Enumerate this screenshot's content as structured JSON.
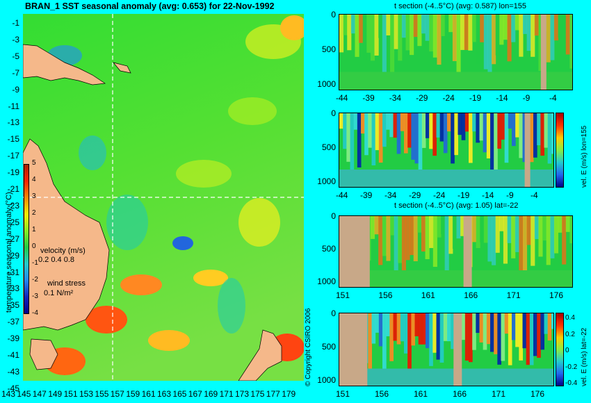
{
  "map": {
    "title": "BRAN_1 SST seasonal anomaly (avg: 0.653) for 22-Nov-1992",
    "y_ticks": [
      "-1",
      "-3",
      "-5",
      "-7",
      "-9",
      "-11",
      "-13",
      "-15",
      "-17",
      "-19",
      "-21",
      "-23",
      "-25",
      "-27",
      "-29",
      "-31",
      "-33",
      "-35",
      "-37",
      "-39",
      "-41",
      "-43",
      "-45"
    ],
    "x_ticks": [
      "143",
      "145",
      "147",
      "149",
      "151",
      "153",
      "155",
      "157",
      "159",
      "161",
      "163",
      "165",
      "167",
      "169",
      "171",
      "173",
      "175",
      "177",
      "179"
    ],
    "colorbar": {
      "label": "temperature seasonal anomaly (°C)",
      "ticks": [
        "5",
        "4",
        "3",
        "2",
        "1",
        "0",
        "-1",
        "-2",
        "-3",
        "-4"
      ]
    },
    "legend": {
      "velocity_title": "velocity (m/s)",
      "velocity_values": "0.2 0.4 0.8",
      "wind_title": "wind stress",
      "wind_value": "0.1 N/m²"
    },
    "copyright": "© Copyright CSIRO 2006",
    "colors": {
      "land": "#f5b88a",
      "crosshair": "#ffffff"
    }
  },
  "panels": [
    {
      "title": "t section (-4..5°C) (avg: 0.587) lon=155",
      "y_ticks": [
        "0",
        "500",
        "1000"
      ],
      "x_ticks": [
        "-44",
        "-39",
        "-34",
        "-29",
        "-24",
        "-19",
        "-14",
        "-9",
        "-4"
      ]
    },
    {
      "title": "",
      "y_ticks": [
        "0",
        "500",
        "1000"
      ],
      "x_ticks": [
        "-44",
        "-39",
        "-34",
        "-29",
        "-24",
        "-19",
        "-14",
        "-9",
        "-4"
      ],
      "cbar_label": "vel. E (m/s) lon=155",
      "cbar_ticks": [
        "",
        "",
        "",
        "",
        "",
        ""
      ]
    },
    {
      "title": "t section (-4..5°C) (avg: 1.05) lat=-22",
      "y_ticks": [
        "0",
        "500",
        "1000"
      ],
      "x_ticks": [
        "151",
        "156",
        "161",
        "166",
        "171",
        "176"
      ]
    },
    {
      "title": "",
      "y_ticks": [
        "0",
        "500",
        "1000"
      ],
      "x_ticks": [
        "151",
        "156",
        "161",
        "166",
        "171",
        "176"
      ],
      "cbar_label": "vel. E (m/s) lat=-22",
      "cbar_ticks": [
        "0.4",
        "0.2",
        "0",
        "-0.2",
        "-0.4"
      ]
    }
  ]
}
